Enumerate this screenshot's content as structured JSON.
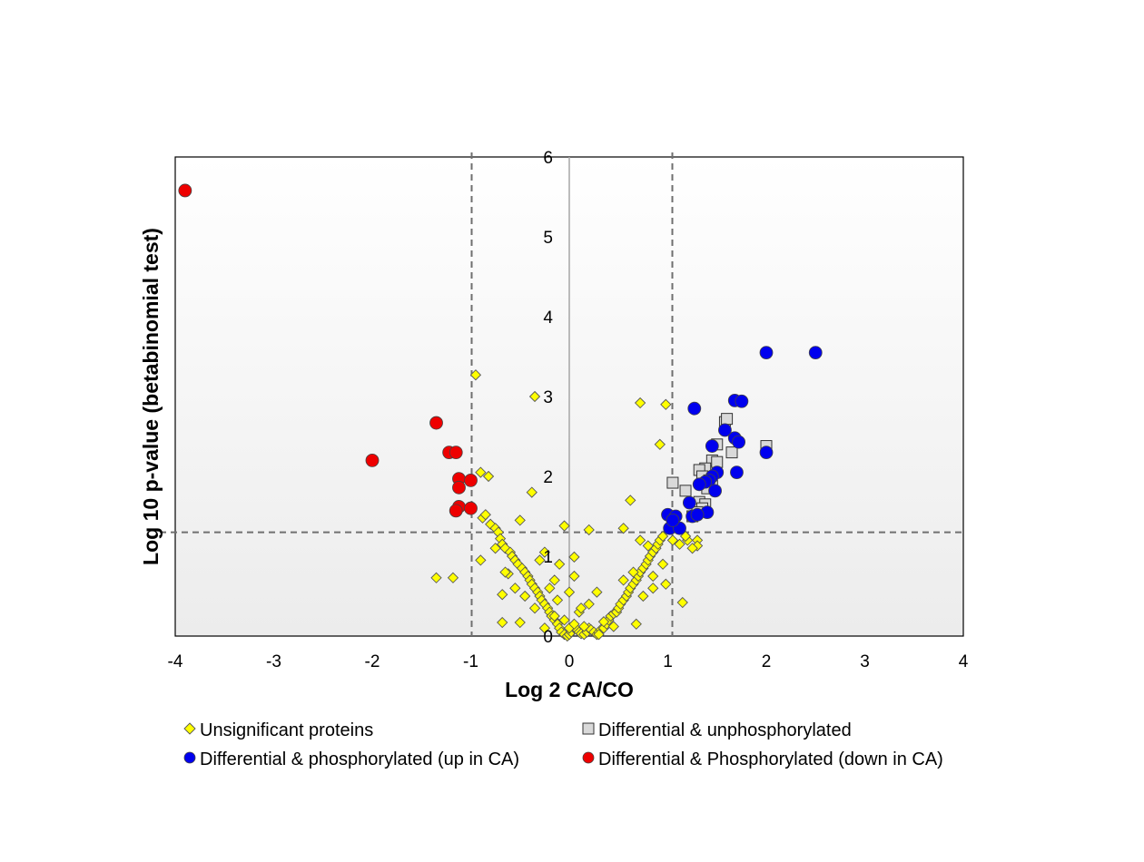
{
  "chart_data": {
    "type": "scatter",
    "title": "",
    "xlabel": "Log 2 CA/CO",
    "ylabel": "Log 10 p-value (betabinomial test)",
    "xlim": [
      -4,
      4
    ],
    "ylim": [
      0,
      6
    ],
    "x_ticks": [
      "-4",
      "-3",
      "-2",
      "-1",
      "0",
      "1",
      "2",
      "3",
      "4"
    ],
    "y_ticks": [
      "0",
      "1",
      "2",
      "3",
      "4",
      "5",
      "6"
    ],
    "thresholds": {
      "x": [
        -1,
        1
      ],
      "y": 1.3
    },
    "grid": false,
    "legend_position": "bottom",
    "series": [
      {
        "name": "Unsignificant proteins",
        "marker": "diamond",
        "color": "#ffff00",
        "points": [
          [
            -0.95,
            3.27
          ],
          [
            -0.35,
            3.0
          ],
          [
            -0.9,
            2.05
          ],
          [
            -0.82,
            2.0
          ],
          [
            -0.38,
            1.8
          ],
          [
            -0.88,
            1.48
          ],
          [
            -0.85,
            1.52
          ],
          [
            -0.8,
            1.4
          ],
          [
            -0.75,
            1.35
          ],
          [
            -0.72,
            1.3
          ],
          [
            -0.7,
            1.22
          ],
          [
            -0.68,
            1.15
          ],
          [
            -0.65,
            1.1
          ],
          [
            -0.6,
            1.05
          ],
          [
            -0.58,
            1.0
          ],
          [
            -0.55,
            0.95
          ],
          [
            -0.52,
            0.9
          ],
          [
            -0.48,
            0.85
          ],
          [
            -0.45,
            0.8
          ],
          [
            -0.42,
            0.75
          ],
          [
            -0.4,
            0.7
          ],
          [
            -0.38,
            0.65
          ],
          [
            -0.35,
            0.6
          ],
          [
            -0.32,
            0.55
          ],
          [
            -0.3,
            0.5
          ],
          [
            -0.28,
            0.45
          ],
          [
            -0.25,
            0.4
          ],
          [
            -0.22,
            0.35
          ],
          [
            -0.2,
            0.3
          ],
          [
            -0.18,
            0.25
          ],
          [
            -0.15,
            0.2
          ],
          [
            -0.12,
            0.15
          ],
          [
            -0.1,
            0.1
          ],
          [
            -0.08,
            0.05
          ],
          [
            -0.05,
            0.02
          ],
          [
            -0.02,
            0.0
          ],
          [
            0.0,
            0.02
          ],
          [
            0.02,
            0.05
          ],
          [
            0.05,
            0.1
          ],
          [
            0.08,
            0.08
          ],
          [
            0.1,
            0.05
          ],
          [
            0.12,
            0.03
          ],
          [
            0.15,
            0.02
          ],
          [
            0.18,
            0.05
          ],
          [
            0.2,
            0.1
          ],
          [
            0.22,
            0.08
          ],
          [
            0.25,
            0.05
          ],
          [
            0.28,
            0.02
          ],
          [
            0.3,
            0.05
          ],
          [
            0.32,
            0.08
          ],
          [
            0.35,
            0.1
          ],
          [
            0.38,
            0.15
          ],
          [
            0.4,
            0.2
          ],
          [
            0.42,
            0.25
          ],
          [
            0.45,
            0.28
          ],
          [
            0.48,
            0.3
          ],
          [
            0.5,
            0.35
          ],
          [
            0.52,
            0.4
          ],
          [
            0.55,
            0.45
          ],
          [
            0.58,
            0.5
          ],
          [
            0.6,
            0.55
          ],
          [
            0.62,
            0.6
          ],
          [
            0.65,
            0.65
          ],
          [
            0.68,
            0.7
          ],
          [
            0.7,
            0.75
          ],
          [
            0.72,
            0.8
          ],
          [
            0.75,
            0.85
          ],
          [
            0.78,
            0.9
          ],
          [
            0.8,
            0.95
          ],
          [
            0.82,
            1.0
          ],
          [
            0.85,
            1.05
          ],
          [
            0.88,
            1.1
          ],
          [
            0.9,
            1.15
          ],
          [
            0.92,
            1.2
          ],
          [
            0.95,
            1.25
          ],
          [
            0.72,
            2.92
          ],
          [
            0.98,
            2.9
          ],
          [
            0.92,
            2.4
          ],
          [
            0.62,
            1.7
          ],
          [
            0.55,
            1.35
          ],
          [
            0.2,
            1.33
          ],
          [
            -0.05,
            1.38
          ],
          [
            -0.5,
            1.45
          ],
          [
            -0.25,
            1.05
          ],
          [
            -0.9,
            0.95
          ],
          [
            -1.35,
            0.73
          ],
          [
            -1.18,
            0.73
          ],
          [
            -0.68,
            0.52
          ],
          [
            -0.68,
            0.17
          ],
          [
            -0.5,
            0.17
          ],
          [
            -0.62,
            0.78
          ],
          [
            -0.3,
            0.95
          ],
          [
            -0.1,
            0.9
          ],
          [
            0.05,
            0.75
          ],
          [
            -0.15,
            0.7
          ],
          [
            0.05,
            0.99
          ],
          [
            0.28,
            0.55
          ],
          [
            0.68,
            0.15
          ],
          [
            0.98,
            0.65
          ],
          [
            1.15,
            0.42
          ],
          [
            0.72,
            1.2
          ],
          [
            0.8,
            1.13
          ],
          [
            1.05,
            1.2
          ],
          [
            1.12,
            1.15
          ],
          [
            1.2,
            1.2
          ],
          [
            1.3,
            1.2
          ],
          [
            1.3,
            1.13
          ],
          [
            1.25,
            1.1
          ],
          [
            1.18,
            1.25
          ],
          [
            0.85,
            0.6
          ],
          [
            0.0,
            0.1
          ],
          [
            -0.05,
            0.2
          ],
          [
            -0.15,
            0.25
          ],
          [
            0.1,
            0.3
          ],
          [
            0.2,
            0.4
          ],
          [
            -0.25,
            0.1
          ],
          [
            0.05,
            0.15
          ],
          [
            0.15,
            0.12
          ],
          [
            0.35,
            0.18
          ],
          [
            0.45,
            0.12
          ],
          [
            -0.35,
            0.35
          ],
          [
            -0.45,
            0.5
          ],
          [
            -0.55,
            0.6
          ],
          [
            -0.65,
            0.8
          ],
          [
            -0.75,
            1.1
          ],
          [
            0.55,
            0.7
          ],
          [
            0.65,
            0.8
          ],
          [
            0.75,
            0.5
          ],
          [
            0.85,
            0.75
          ],
          [
            0.95,
            0.9
          ],
          [
            -0.12,
            0.45
          ],
          [
            0.0,
            0.55
          ],
          [
            0.12,
            0.35
          ],
          [
            -0.2,
            0.6
          ],
          [
            0.3,
            0.02
          ]
        ]
      },
      {
        "name": "Differential & unphosphorylated",
        "marker": "square",
        "color": "#d9d9d9",
        "points": [
          [
            1.58,
            2.68
          ],
          [
            1.6,
            2.72
          ],
          [
            1.5,
            2.4
          ],
          [
            1.45,
            2.2
          ],
          [
            1.5,
            2.18
          ],
          [
            1.38,
            2.1
          ],
          [
            1.32,
            2.08
          ],
          [
            1.35,
            2.0
          ],
          [
            1.42,
            1.95
          ],
          [
            1.45,
            1.88
          ],
          [
            1.4,
            1.85
          ],
          [
            1.05,
            1.92
          ],
          [
            1.18,
            1.82
          ],
          [
            1.32,
            1.68
          ],
          [
            1.38,
            1.65
          ],
          [
            1.65,
            2.3
          ],
          [
            2.0,
            2.38
          ],
          [
            1.35,
            1.6
          ],
          [
            1.3,
            1.55
          ],
          [
            1.25,
            1.5
          ]
        ]
      },
      {
        "name": "Differential & phosphorylated (up in CA)",
        "marker": "circle",
        "color": "#0000ee",
        "points": [
          [
            2.0,
            3.55
          ],
          [
            2.5,
            3.55
          ],
          [
            1.68,
            2.95
          ],
          [
            1.75,
            2.94
          ],
          [
            1.27,
            2.85
          ],
          [
            1.58,
            2.58
          ],
          [
            1.68,
            2.48
          ],
          [
            1.72,
            2.43
          ],
          [
            1.45,
            2.38
          ],
          [
            2.0,
            2.3
          ],
          [
            1.5,
            2.05
          ],
          [
            1.45,
            2.0
          ],
          [
            1.42,
            1.95
          ],
          [
            1.38,
            1.93
          ],
          [
            1.32,
            1.9
          ],
          [
            1.7,
            2.05
          ],
          [
            1.48,
            1.82
          ],
          [
            1.22,
            1.67
          ],
          [
            1.4,
            1.55
          ],
          [
            1.25,
            1.5
          ],
          [
            1.3,
            1.52
          ],
          [
            1.0,
            1.52
          ],
          [
            1.08,
            1.5
          ],
          [
            1.02,
            1.35
          ],
          [
            1.12,
            1.35
          ],
          [
            1.05,
            1.45
          ]
        ]
      },
      {
        "name": "Differential & Phosphorylated (down in CA)",
        "marker": "circle",
        "color": "#ee0000",
        "points": [
          [
            -3.9,
            5.58
          ],
          [
            -1.35,
            2.67
          ],
          [
            -2.0,
            2.2
          ],
          [
            -1.22,
            2.3
          ],
          [
            -1.15,
            2.3
          ],
          [
            -1.12,
            1.97
          ],
          [
            -1.0,
            1.95
          ],
          [
            -1.12,
            1.86
          ],
          [
            -1.12,
            1.62
          ],
          [
            -1.0,
            1.6
          ],
          [
            -1.15,
            1.57
          ]
        ]
      }
    ]
  }
}
